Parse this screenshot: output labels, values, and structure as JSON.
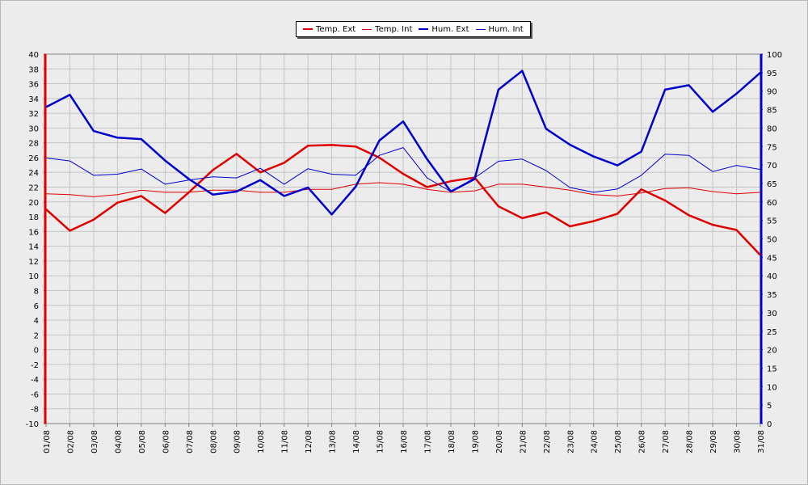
{
  "chart_data": {
    "type": "line",
    "categories": [
      "01/08",
      "02/08",
      "03/08",
      "04/08",
      "05/08",
      "06/08",
      "07/08",
      "08/08",
      "09/08",
      "10/08",
      "11/08",
      "12/08",
      "13/08",
      "14/08",
      "15/08",
      "16/08",
      "17/08",
      "18/08",
      "19/08",
      "20/08",
      "21/08",
      "22/08",
      "23/08",
      "24/08",
      "25/08",
      "26/08",
      "27/08",
      "28/08",
      "29/08",
      "30/08",
      "31/08"
    ],
    "y_left": {
      "min": -10,
      "max": 40,
      "step": 2,
      "color": "#e00000"
    },
    "y_right": {
      "min": 0,
      "max": 100,
      "step": 5,
      "color": "#0000cc"
    },
    "grid": true,
    "legend_position": "top-center",
    "series": [
      {
        "name": "Temp. Ext",
        "axis": "left",
        "color": "#e00000",
        "width": 2.5,
        "values": [
          19.0,
          16.1,
          17.6,
          19.9,
          20.8,
          18.5,
          21.3,
          24.3,
          26.5,
          24.0,
          25.3,
          27.6,
          27.7,
          27.5,
          26.0,
          23.8,
          22.0,
          22.8,
          23.3,
          19.4,
          17.8,
          18.6,
          16.7,
          17.4,
          18.4,
          21.7,
          20.2,
          18.2,
          16.9,
          16.2,
          12.8
        ]
      },
      {
        "name": "Temp. Int",
        "axis": "left",
        "color": "#e00000",
        "width": 1,
        "values": [
          21.1,
          21.0,
          20.7,
          21.0,
          21.6,
          21.3,
          21.3,
          21.6,
          21.6,
          21.3,
          21.3,
          21.7,
          21.7,
          22.4,
          22.6,
          22.4,
          21.7,
          21.3,
          21.5,
          22.4,
          22.4,
          22.0,
          21.6,
          21.0,
          20.8,
          21.2,
          21.8,
          21.9,
          21.4,
          21.1,
          21.3
        ]
      },
      {
        "name": "Hum. Ext",
        "axis": "right",
        "color": "#0000cc",
        "width": 2.5,
        "values": [
          85.7,
          89.0,
          79.2,
          77.4,
          77.0,
          71.2,
          66.2,
          62.0,
          62.8,
          65.9,
          61.6,
          63.9,
          56.6,
          64.1,
          76.6,
          81.8,
          71.6,
          62.8,
          66.2,
          90.4,
          95.5,
          79.8,
          75.5,
          72.3,
          69.9,
          73.6,
          90.4,
          91.6,
          84.4,
          89.3,
          95.0
        ]
      },
      {
        "name": "Hum. Int",
        "axis": "right",
        "color": "#0000cc",
        "width": 1,
        "values": [
          71.9,
          71.1,
          67.2,
          67.5,
          68.9,
          64.8,
          65.9,
          66.8,
          66.5,
          69.1,
          64.8,
          69.0,
          67.5,
          67.2,
          72.6,
          74.7,
          66.5,
          62.8,
          66.5,
          71.0,
          71.6,
          68.5,
          63.9,
          62.6,
          63.5,
          67.2,
          72.9,
          72.6,
          68.2,
          69.9,
          68.8
        ]
      }
    ]
  }
}
